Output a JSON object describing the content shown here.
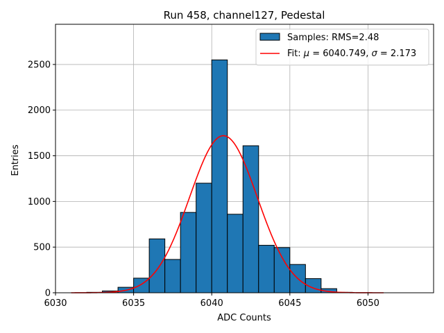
{
  "chart_data": {
    "type": "bar",
    "title": "Run 458, channel127, Pedestal",
    "xlabel": "ADC Counts",
    "ylabel": "Entries",
    "xlim": [
      6030,
      6054.2
    ],
    "ylim": [
      0,
      2940
    ],
    "xticks": [
      6030,
      6035,
      6040,
      6045,
      6050
    ],
    "yticks": [
      0,
      500,
      1000,
      1500,
      2000,
      2500
    ],
    "grid": true,
    "legend_position": "top-right",
    "histogram": {
      "name": "Samples: RMS=2.48",
      "color": "#1f77b4",
      "bin_width": 1,
      "bin_edges_start": 6032,
      "values": [
        5,
        20,
        60,
        160,
        590,
        365,
        880,
        1200,
        2550,
        860,
        1610,
        520,
        495,
        310,
        155,
        45,
        5
      ]
    },
    "fit": {
      "name": "Fit: μ = 6040.749, σ = 2.173",
      "label_parts": {
        "prefix": "Fit: ",
        "mu_symbol": "μ",
        "mu_text": " = 6040.749, ",
        "sigma_symbol": "σ",
        "sigma_text": " = 2.173"
      },
      "color": "#ff0000",
      "mu": 6040.749,
      "sigma": 2.173,
      "amplitude": 1720,
      "x_range": [
        6031,
        6051
      ]
    }
  }
}
